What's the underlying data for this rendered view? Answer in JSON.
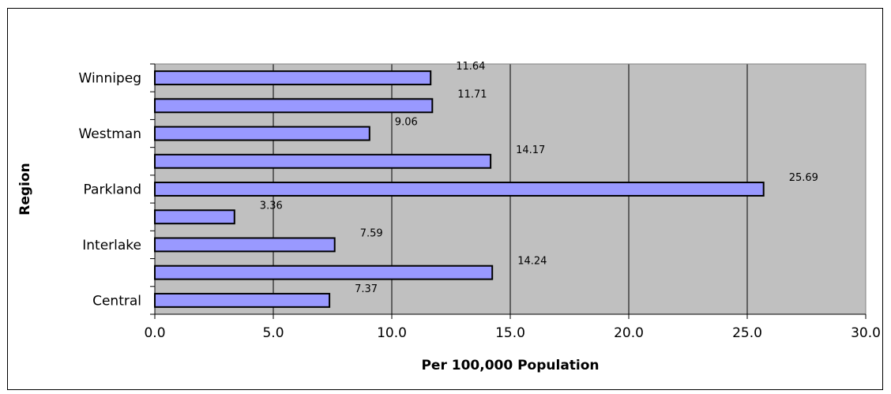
{
  "chart_data": {
    "type": "bar",
    "orientation": "horizontal",
    "title": "",
    "xlabel": "Per 100,000 Population",
    "ylabel": "Region",
    "xlim": [
      0,
      30
    ],
    "x_ticks": [
      "0.0",
      "5.0",
      "10.0",
      "15.0",
      "20.0",
      "25.0",
      "30.0"
    ],
    "categories": [
      "Winnipeg",
      "",
      "Westman",
      "",
      "Parkland",
      "",
      "Interlake",
      "",
      "Central"
    ],
    "values": [
      11.64,
      11.71,
      9.06,
      14.17,
      25.69,
      3.36,
      7.59,
      14.24,
      7.37
    ],
    "value_labels": [
      "11.64",
      "11.71",
      "9.06",
      "14.17",
      "25.69",
      "3.36",
      "7.59",
      "14.24",
      "7.37"
    ],
    "grid": "vertical",
    "legend": "none",
    "colors": {
      "bar_fill": "#9999ff",
      "bar_stroke": "#000000",
      "plot_background": "#c0c0c0",
      "gridline": "#000000"
    }
  }
}
